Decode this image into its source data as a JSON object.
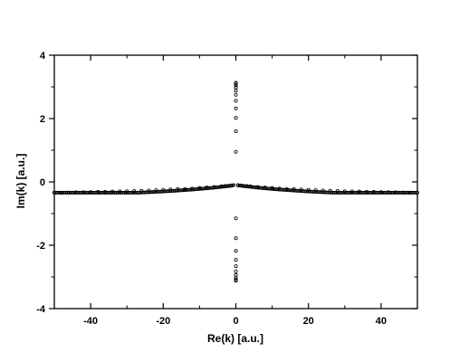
{
  "chart_data": {
    "type": "scatter",
    "title": "",
    "xlabel": "Re(k) [a.u.]",
    "ylabel": "Im(k) [a.u.]",
    "xlim": [
      -50,
      50
    ],
    "ylim": [
      -4,
      4
    ],
    "xticks": [
      -40,
      -20,
      0,
      20,
      40
    ],
    "yticks": [
      -4,
      -2,
      0,
      2,
      4
    ],
    "x_minor_step": 10,
    "y_minor_step": 1,
    "marker": "open-circle",
    "grid": false,
    "legend": "none",
    "series": [
      {
        "points": [
          [
            0,
            0.95
          ],
          [
            0,
            1.6
          ],
          [
            0,
            2.02
          ],
          [
            0,
            2.32
          ],
          [
            0,
            2.56
          ],
          [
            0,
            2.75
          ],
          [
            0,
            2.88
          ],
          [
            0,
            2.98
          ],
          [
            0,
            3.05
          ],
          [
            0,
            3.1
          ],
          [
            0,
            3.13
          ],
          [
            0,
            -1.15
          ],
          [
            0,
            -1.78
          ],
          [
            0,
            -2.18
          ],
          [
            0,
            -2.46
          ],
          [
            0,
            -2.66
          ],
          [
            0,
            -2.82
          ],
          [
            0,
            -2.94
          ],
          [
            0,
            -3.02
          ],
          [
            0,
            -3.08
          ],
          [
            0,
            -3.12
          ],
          [
            -50,
            -0.34
          ],
          [
            -48,
            -0.34
          ],
          [
            -46,
            -0.335
          ],
          [
            -44,
            -0.33
          ],
          [
            -42,
            -0.325
          ],
          [
            -40,
            -0.32
          ],
          [
            -38,
            -0.315
          ],
          [
            -36,
            -0.31
          ],
          [
            -34,
            -0.305
          ],
          [
            -32,
            -0.3
          ],
          [
            -30,
            -0.295
          ],
          [
            -28,
            -0.29
          ],
          [
            -26,
            -0.28
          ],
          [
            -24,
            -0.27
          ],
          [
            -22,
            -0.26
          ],
          [
            -20,
            -0.25
          ],
          [
            -18,
            -0.24
          ],
          [
            -16,
            -0.23
          ],
          [
            -14,
            -0.22
          ],
          [
            -12,
            -0.21
          ],
          [
            -10,
            -0.19
          ],
          [
            -8,
            -0.175
          ],
          [
            -6,
            -0.16
          ],
          [
            -4,
            -0.14
          ],
          [
            -3,
            -0.13
          ],
          [
            -2,
            -0.12
          ],
          [
            -1.2,
            -0.11
          ],
          [
            -0.6,
            -0.1
          ],
          [
            50,
            -0.34
          ],
          [
            48,
            -0.34
          ],
          [
            46,
            -0.335
          ],
          [
            44,
            -0.33
          ],
          [
            42,
            -0.325
          ],
          [
            40,
            -0.32
          ],
          [
            38,
            -0.315
          ],
          [
            36,
            -0.31
          ],
          [
            34,
            -0.305
          ],
          [
            32,
            -0.3
          ],
          [
            30,
            -0.295
          ],
          [
            28,
            -0.29
          ],
          [
            26,
            -0.28
          ],
          [
            24,
            -0.27
          ],
          [
            22,
            -0.26
          ],
          [
            20,
            -0.25
          ],
          [
            18,
            -0.24
          ],
          [
            16,
            -0.23
          ],
          [
            14,
            -0.22
          ],
          [
            12,
            -0.21
          ],
          [
            10,
            -0.19
          ],
          [
            8,
            -0.175
          ],
          [
            6,
            -0.16
          ],
          [
            4,
            -0.14
          ],
          [
            3,
            -0.13
          ],
          [
            2,
            -0.12
          ],
          [
            1.2,
            -0.11
          ],
          [
            0.6,
            -0.1
          ]
        ]
      }
    ]
  }
}
